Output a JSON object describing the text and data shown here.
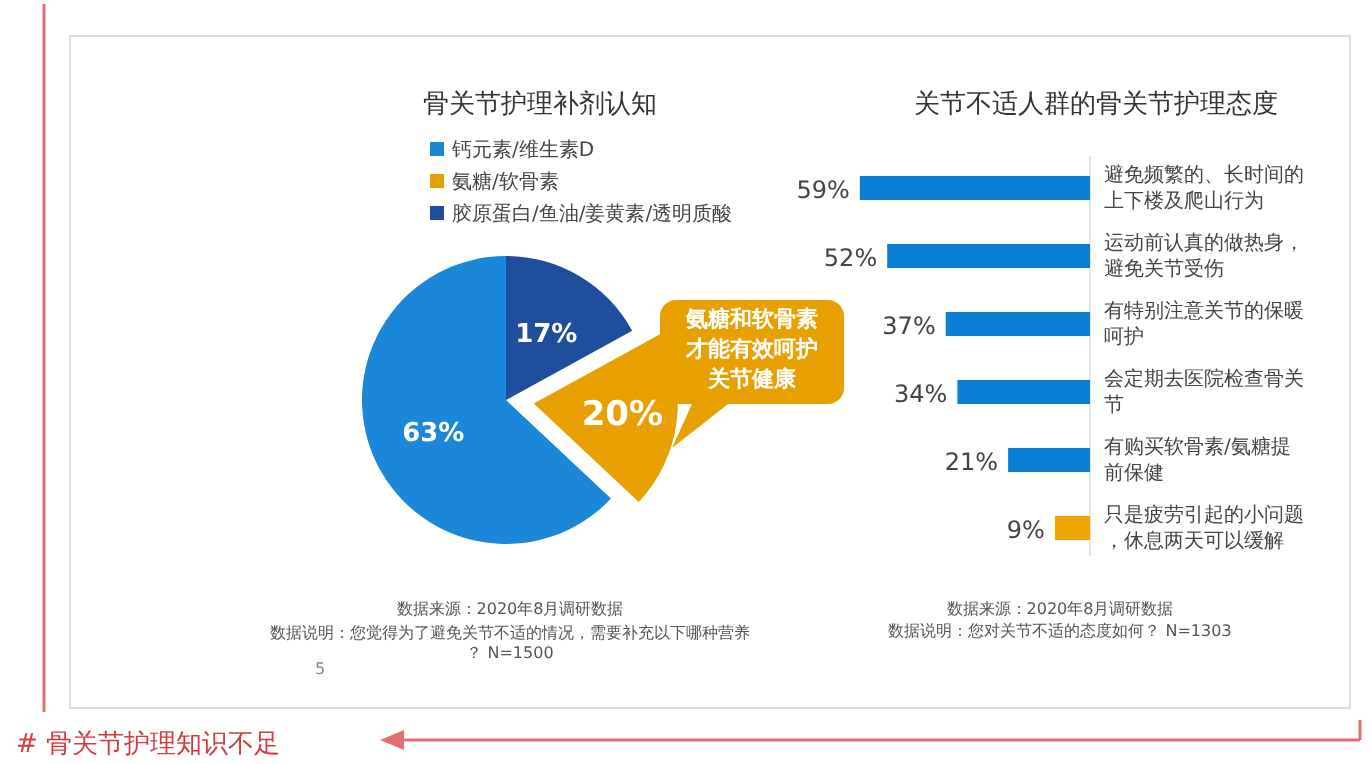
{
  "chart_data": [
    {
      "type": "pie",
      "title": "骨关节护理补剂认知",
      "categories": [
        "钙元素/维生素D",
        "氨糖/软骨素",
        "胶原蛋白/鱼油/姜黄素/透明质酸"
      ],
      "values": [
        63,
        20,
        17
      ],
      "colors": [
        "#1a87d8",
        "#e8a000",
        "#1f4e9c"
      ],
      "value_labels": [
        "63%",
        "20%",
        "17%"
      ],
      "legend": "top",
      "annotations": [
        "氨糖和软骨素才能有效呵护关节健康",
        "数据来源：2020年8月调研数据",
        "数据说明：您觉得为了避免关节不适的情况，需要补充以下哪种营养？ N=1500",
        "5",
        "# 骨关节护理知识不足"
      ]
    },
    {
      "type": "bar",
      "orientation": "horizontal",
      "title": "关节不适人群的骨关节护理态度",
      "categories": [
        "避免频繁的、长时间的上下楼及爬山行为",
        "运动前认真的做热身，避免关节受伤",
        "有特别注意关节的保暖呵护",
        "会定期去医院检查骨关节",
        "有购买软骨素/氨糖提前保健",
        "只是疲劳引起的小问题，休息两天可以缓解"
      ],
      "values": [
        59,
        52,
        37,
        34,
        21,
        9
      ],
      "colors": [
        "#0a7fd4",
        "#0a7fd4",
        "#0a7fd4",
        "#0a7fd4",
        "#0a7fd4",
        "#f0a500"
      ],
      "value_labels": [
        "59%",
        "52%",
        "37%",
        "34%",
        "21%",
        "9%"
      ],
      "annotations": [
        "数据来源：2020年8月调研数据",
        "数据说明：您对关节不适的态度如何？ N=1303"
      ]
    }
  ]
}
